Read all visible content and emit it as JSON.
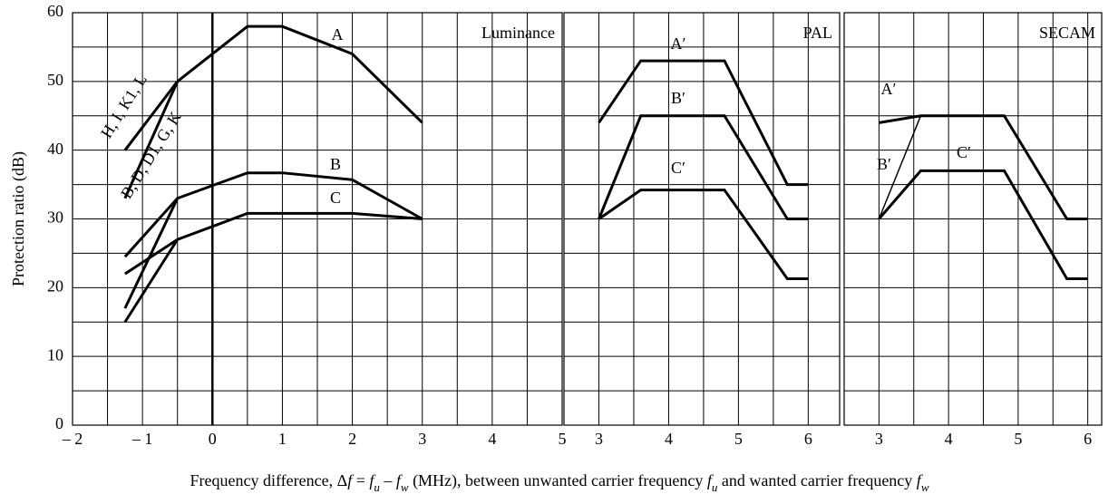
{
  "chart_data": [
    {
      "type": "line",
      "title": "Luminance",
      "y_label": "Protection ratio (dB)",
      "x_label": [
        {
          "text": "Frequency difference, Δ"
        },
        {
          "text": "f",
          "italic": true
        },
        {
          "text": " = "
        },
        {
          "text": "f",
          "italic": true
        },
        {
          "text": "u",
          "italic": true,
          "sub": true
        },
        {
          "text": " – "
        },
        {
          "text": "f",
          "italic": true
        },
        {
          "text": "w",
          "italic": true,
          "sub": true
        },
        {
          "text": " (MHz), between unwanted carrier frequency "
        },
        {
          "text": "f",
          "italic": true
        },
        {
          "text": "u",
          "italic": true,
          "sub": true
        },
        {
          "text": " and wanted carrier frequency "
        },
        {
          "text": "f",
          "italic": true
        },
        {
          "text": "w",
          "italic": true,
          "sub": true
        }
      ],
      "xlim": [
        -2,
        5
      ],
      "ylim": [
        0,
        60
      ],
      "xticks": [
        {
          "value": -2,
          "label": "– 2"
        },
        {
          "value": -1,
          "label": "– 1"
        },
        0,
        1,
        2,
        3,
        4,
        5
      ],
      "yticks": [
        0,
        10,
        20,
        30,
        40,
        50,
        60
      ],
      "xgrid": [
        -1.5,
        -1,
        -0.5,
        0,
        0.5,
        1,
        1.5,
        2,
        2.5,
        3,
        3.5,
        4,
        4.5
      ],
      "ygrid": [
        5,
        10,
        15,
        20,
        25,
        30,
        35,
        40,
        45,
        50,
        55
      ],
      "vline": 0,
      "color": "#000000",
      "series": [
        {
          "name": "H, I, K1, L",
          "x": [
            -1.25,
            -0.5
          ],
          "values": [
            40,
            50
          ],
          "line_width": 3
        },
        {
          "name": "A",
          "x": [
            -0.5,
            0.5,
            1,
            2,
            3
          ],
          "values": [
            50,
            58,
            58,
            54,
            44
          ],
          "line_width": 3
        },
        {
          "name": "B, D, D1, G, K",
          "x": [
            -1.25,
            -0.5
          ],
          "values": [
            33,
            50
          ],
          "line_width": 3
        },
        {
          "name": "B",
          "x": [
            -1.25,
            -0.5,
            0.5,
            1,
            2,
            3
          ],
          "values": [
            24.5,
            33,
            36.7,
            36.7,
            35.7,
            30
          ],
          "line_width": 3
        },
        {
          "x": [
            -1.25,
            -0.5
          ],
          "values": [
            17,
            33
          ],
          "line_width": 3
        },
        {
          "name": "C",
          "x": [
            -1.25,
            -0.5,
            0.5,
            1,
            2,
            3
          ],
          "values": [
            22,
            27,
            30.8,
            30.8,
            30.8,
            30
          ],
          "line_width": 3
        },
        {
          "x": [
            -1.25,
            -0.5
          ],
          "values": [
            15,
            27
          ],
          "line_width": 3
        }
      ]
    },
    {
      "type": "line",
      "title": "PAL",
      "xlim": [
        2.5,
        6.45
      ],
      "ylim": [
        0,
        60
      ],
      "xticks": [
        3,
        4,
        5,
        6
      ],
      "xgrid": [
        3,
        3.5,
        4,
        4.5,
        5,
        5.5,
        6
      ],
      "ygrid": [
        5,
        10,
        15,
        20,
        25,
        30,
        35,
        40,
        45,
        50,
        55
      ],
      "color": "#000000",
      "series": [
        {
          "name": "A′",
          "x": [
            3,
            3.6,
            4.8,
            5.7,
            6
          ],
          "values": [
            44,
            53,
            53,
            35,
            35
          ],
          "line_width": 3
        },
        {
          "name": "B′",
          "x": [
            3,
            3.6,
            4.8,
            5.7,
            6
          ],
          "values": [
            30,
            45,
            45,
            30,
            30
          ],
          "line_width": 3
        },
        {
          "name": "C′",
          "x": [
            3,
            3.6,
            4.8,
            5.7,
            6
          ],
          "values": [
            30,
            34.2,
            34.2,
            21.3,
            21.3
          ],
          "line_width": 3
        }
      ]
    },
    {
      "type": "line",
      "title": "SECAM",
      "xlim": [
        2.5,
        6.2
      ],
      "ylim": [
        0,
        60
      ],
      "xticks": [
        3,
        4,
        5,
        6
      ],
      "xgrid": [
        3,
        3.5,
        4,
        4.5,
        5,
        5.5,
        6
      ],
      "ygrid": [
        5,
        10,
        15,
        20,
        25,
        30,
        35,
        40,
        45,
        50,
        55
      ],
      "color": "#000000",
      "series": [
        {
          "name": "A′",
          "x": [
            3,
            3.6,
            4.8,
            5.7,
            6
          ],
          "values": [
            44,
            45,
            45,
            30,
            30
          ],
          "line_width": 3
        },
        {
          "name": "B′",
          "x": [
            3,
            3.6
          ],
          "values": [
            30,
            45
          ],
          "line_width": 1.5
        },
        {
          "name": "C′",
          "x": [
            3,
            3.6,
            4.8,
            5.7,
            6
          ],
          "values": [
            30,
            37,
            37,
            21.3,
            21.3
          ],
          "line_width": 3
        }
      ]
    }
  ]
}
